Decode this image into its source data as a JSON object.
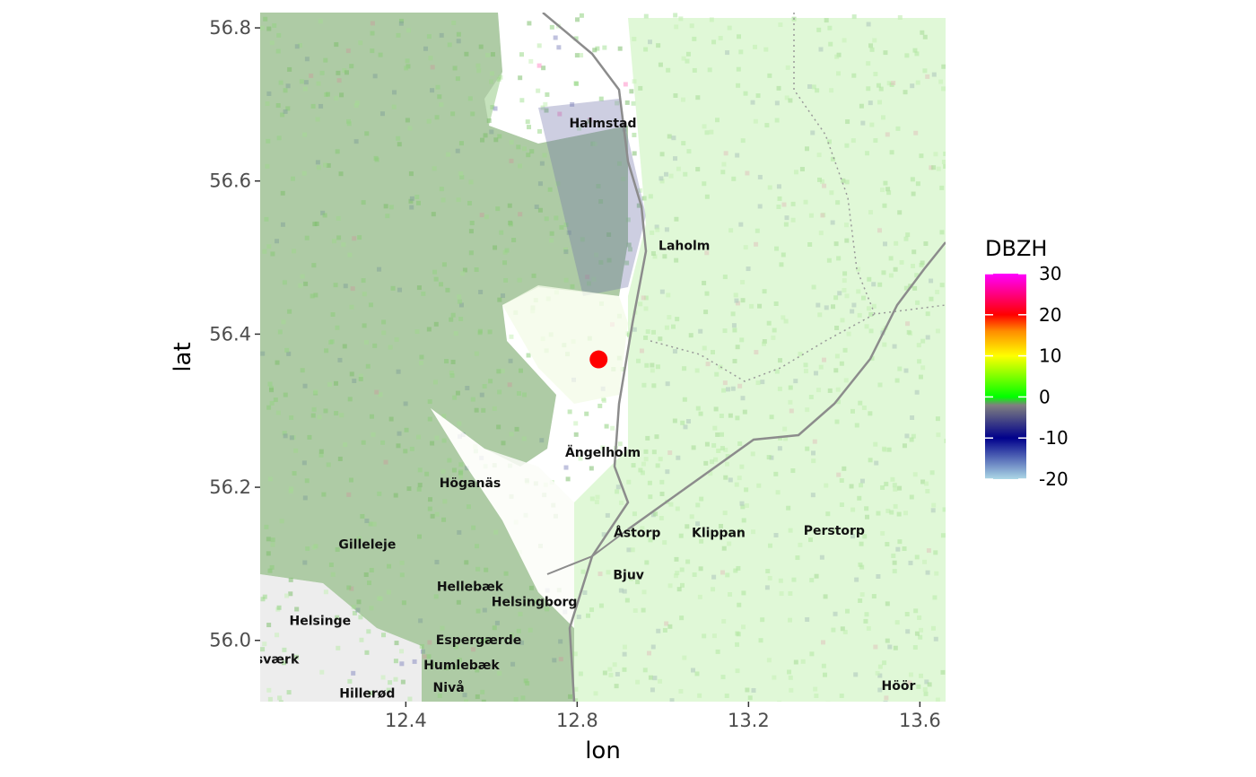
{
  "chart_data": {
    "type": "heatmap",
    "xlabel": "lon",
    "ylabel": "lat",
    "xlim": [
      12.06,
      13.66
    ],
    "ylim": [
      55.92,
      56.82
    ],
    "x_ticks": [
      "12.4",
      "12.8",
      "13.2",
      "13.6"
    ],
    "y_ticks": [
      "56.0",
      "56.2",
      "56.4",
      "56.6",
      "56.8"
    ],
    "radar_site": {
      "lon": 12.85,
      "lat": 56.367,
      "color": "#ff0000"
    },
    "legend": {
      "title": "DBZH",
      "min": -20,
      "max": 30,
      "labels": [
        "30",
        "20",
        "10",
        "0",
        "-10",
        "-20"
      ],
      "colors": [
        "#add8e6",
        "#00008b",
        "#808080",
        "#00ff00",
        "#ffff00",
        "#ff8c00",
        "#ff0000",
        "#ff00ff"
      ]
    },
    "places": [
      {
        "name": "Halmstad",
        "lon": 12.86,
        "lat": 56.67
      },
      {
        "name": "Laholm",
        "lon": 13.05,
        "lat": 56.51
      },
      {
        "name": "Ängelholm",
        "lon": 12.86,
        "lat": 56.24
      },
      {
        "name": "Höganäs",
        "lon": 12.55,
        "lat": 56.2
      },
      {
        "name": "Åstorp",
        "lon": 12.94,
        "lat": 56.135
      },
      {
        "name": "Klippan",
        "lon": 13.13,
        "lat": 56.135
      },
      {
        "name": "Perstorp",
        "lon": 13.4,
        "lat": 56.138
      },
      {
        "name": "Gilleleje",
        "lon": 12.31,
        "lat": 56.12
      },
      {
        "name": "Bjuv",
        "lon": 12.92,
        "lat": 56.08
      },
      {
        "name": "Hellebæk",
        "lon": 12.55,
        "lat": 56.065
      },
      {
        "name": "Helsingborg",
        "lon": 12.7,
        "lat": 56.045
      },
      {
        "name": "Helsinge",
        "lon": 12.2,
        "lat": 56.02
      },
      {
        "name": "Espergærde",
        "lon": 12.57,
        "lat": 55.995
      },
      {
        "name": "Humlebæk",
        "lon": 12.53,
        "lat": 55.962
      },
      {
        "name": "Nivå",
        "lon": 12.5,
        "lat": 55.933
      },
      {
        "name": "Hillerød",
        "lon": 12.31,
        "lat": 55.925
      },
      {
        "name": "Höör",
        "lon": 13.55,
        "lat": 55.935
      },
      {
        "name": "sværk",
        "lon": 12.1,
        "lat": 55.97
      }
    ]
  }
}
